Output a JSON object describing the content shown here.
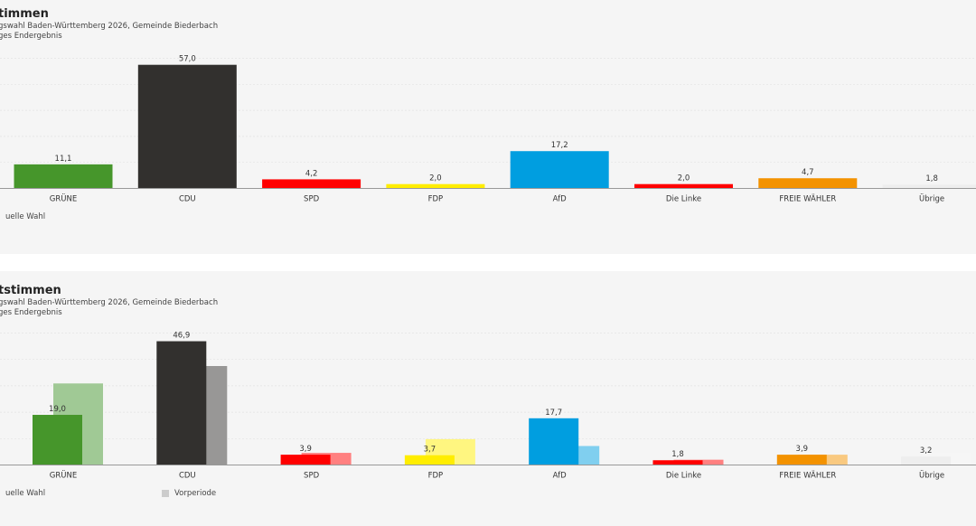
{
  "panels": [
    {
      "title": "timmen",
      "subtitle_line1": "gswahl Baden-Württemberg 2026, Gemeinde Biederbach",
      "subtitle_line2": "ges Endergebnis",
      "legend_current": "uelle Wahl"
    },
    {
      "title": "tstimmen",
      "subtitle_line1": "gswahl Baden-Württemberg 2026, Gemeinde Biederbach",
      "subtitle_line2": "ges Endergebnis",
      "legend_current": "uelle Wahl",
      "legend_previous": "Vorperiode"
    }
  ],
  "chart_data": [
    {
      "type": "bar",
      "categories": [
        "GRÜNE",
        "CDU",
        "SPD",
        "FDP",
        "AfD",
        "Die Linke",
        "FREIE WÄHLER",
        "Übrige"
      ],
      "series": [
        {
          "values": [
            11.1,
            57.0,
            4.2,
            2.0,
            17.2,
            2.0,
            4.7,
            1.8
          ]
        }
      ],
      "value_labels": [
        "11,1",
        "57,0",
        "4,2",
        "2,0",
        "17,2",
        "2,0",
        "4,7",
        "1,8"
      ],
      "colors": [
        "#46962b",
        "#32302e",
        "#ff0000",
        "#ffed00",
        "#009ee0",
        "#ff0000",
        "#f39200",
        "#eeeeee"
      ],
      "ylim": [
        0,
        60
      ],
      "grid": true,
      "legend": "bottom-left"
    },
    {
      "type": "bar",
      "categories": [
        "GRÜNE",
        "CDU",
        "SPD",
        "FDP",
        "AfD",
        "Die Linke",
        "FREIE WÄHLER",
        "Übrige"
      ],
      "series": [
        {
          "name": "uelle Wahl",
          "values": [
            19.0,
            46.9,
            3.9,
            3.7,
            17.7,
            1.8,
            3.9,
            3.2
          ]
        },
        {
          "name": "Vorperiode",
          "values": [
            30.9,
            37.5,
            4.6,
            9.8,
            7.2,
            2.0,
            3.9,
            4.4
          ]
        }
      ],
      "value_labels": [
        "19,0",
        "46,9",
        "3,9",
        "3,7",
        "17,7",
        "1,8",
        "3,9",
        "3,2"
      ],
      "colors": [
        "#46962b",
        "#32302e",
        "#ff0000",
        "#ffed00",
        "#009ee0",
        "#ff0000",
        "#f39200",
        "#eeeeee"
      ],
      "previous_colors": [
        "#a0c995",
        "#989796",
        "#ff8080",
        "#fff680",
        "#80cfef",
        "#ff8080",
        "#f9c980",
        "#f6f6f6"
      ],
      "ylim": [
        0,
        50
      ],
      "grid": true,
      "legend": "bottom-left"
    }
  ]
}
